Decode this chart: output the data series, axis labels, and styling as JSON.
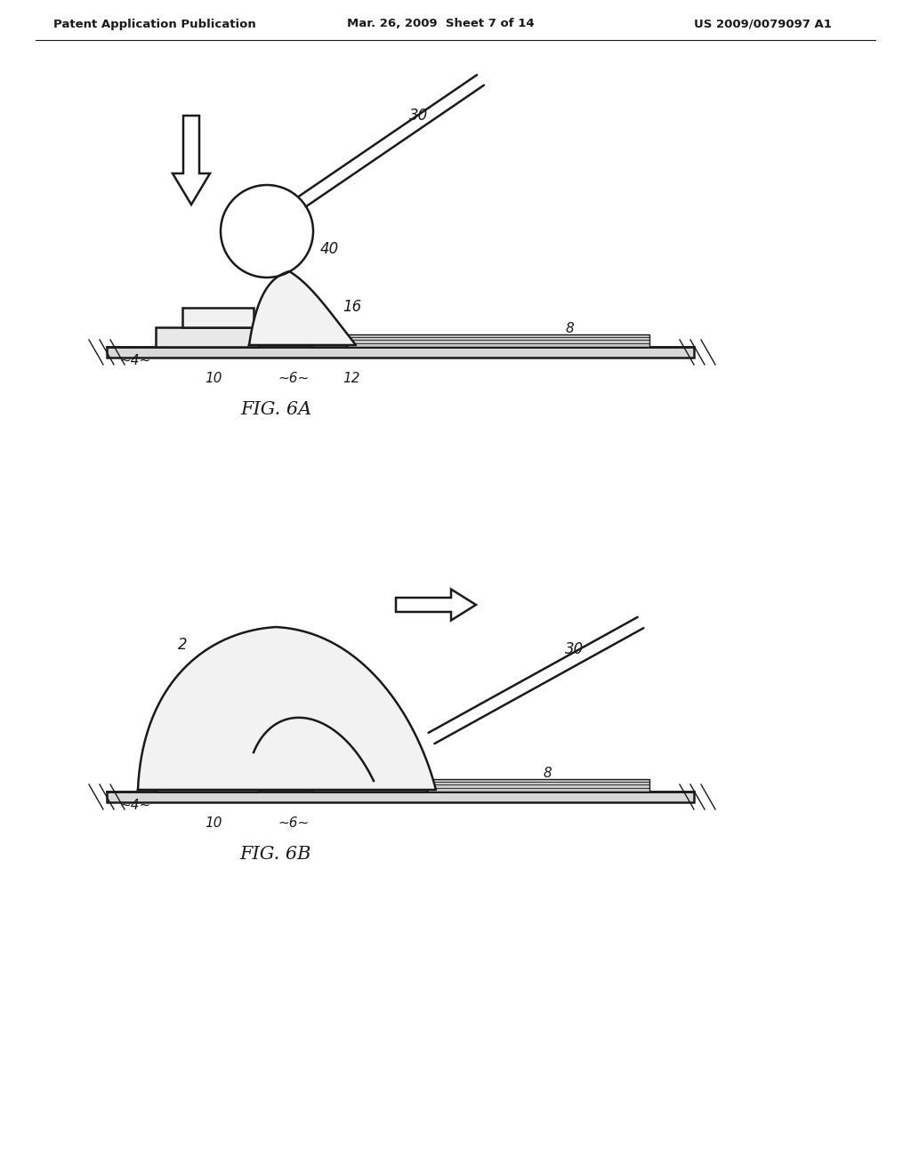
{
  "bg_color": "#ffffff",
  "header_text": "Patent Application Publication",
  "header_date": "Mar. 26, 2009  Sheet 7 of 14",
  "header_patent": "US 2009/0079097 A1",
  "fig6a_label": "FIG. 6A",
  "fig6b_label": "FIG. 6B",
  "line_color": "#1a1a1a",
  "lw_thin": 1.0,
  "lw_med": 1.8,
  "lw_thick": 2.5
}
